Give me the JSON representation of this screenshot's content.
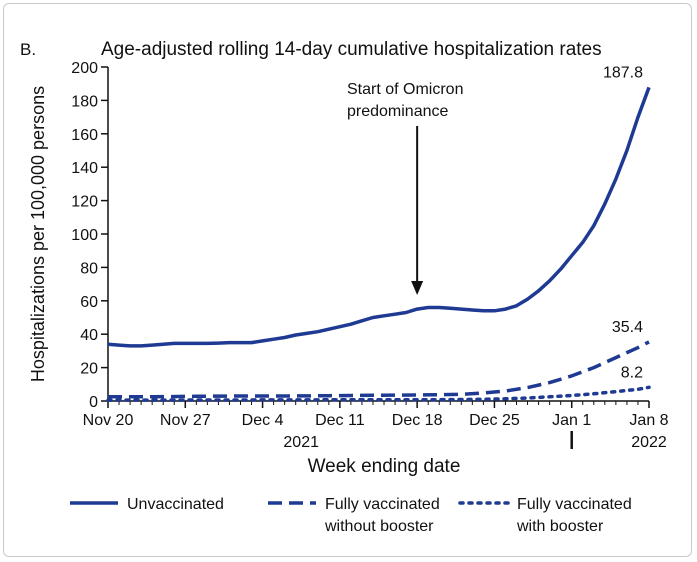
{
  "chart_data": {
    "type": "line",
    "panel_label": "B.",
    "title": "Age-adjusted rolling 14-day cumulative hospitalization rates",
    "xlabel": "Week ending date",
    "ylabel": "Hospitalizations per 100,000 persons",
    "ylim": [
      0,
      200
    ],
    "yticks": [
      0,
      20,
      40,
      60,
      80,
      100,
      120,
      140,
      160,
      180,
      200
    ],
    "xticks": [
      {
        "x": 0,
        "label": "Nov 20"
      },
      {
        "x": 7,
        "label": "Nov 27"
      },
      {
        "x": 14,
        "label": "Dec 4"
      },
      {
        "x": 21,
        "label": "Dec 11"
      },
      {
        "x": 28,
        "label": "Dec 18"
      },
      {
        "x": 35,
        "label": "Dec 25"
      },
      {
        "x": 42,
        "label": "Jan 1"
      },
      {
        "x": 49,
        "label": "Jan 8"
      }
    ],
    "year_labels": [
      {
        "x": 17.5,
        "label": "2021"
      },
      {
        "x": 49,
        "label": "2022"
      }
    ],
    "xlim": [
      0,
      49
    ],
    "grid": false,
    "legend_position": "bottom",
    "annotation": {
      "lines": [
        "Start of Omicron",
        "predominance"
      ],
      "x": 28
    },
    "colors": {
      "series": "#1f3a93",
      "axis": "#111111"
    },
    "series": [
      {
        "name": "Unvaccinated",
        "style": "solid",
        "end_label": "187.8",
        "points": [
          [
            0,
            34
          ],
          [
            1,
            33.5
          ],
          [
            2,
            33
          ],
          [
            3,
            33
          ],
          [
            4,
            33.5
          ],
          [
            5,
            34
          ],
          [
            6,
            34.5
          ],
          [
            7,
            34.5
          ],
          [
            8,
            34.5
          ],
          [
            9,
            34.5
          ],
          [
            10,
            34.7
          ],
          [
            11,
            35
          ],
          [
            12,
            35
          ],
          [
            13,
            35
          ],
          [
            14,
            36
          ],
          [
            15,
            37
          ],
          [
            16,
            38
          ],
          [
            17,
            39.5
          ],
          [
            18,
            40.5
          ],
          [
            19,
            41.5
          ],
          [
            20,
            43
          ],
          [
            21,
            44.5
          ],
          [
            22,
            46
          ],
          [
            23,
            48
          ],
          [
            24,
            50
          ],
          [
            25,
            51
          ],
          [
            26,
            52
          ],
          [
            27,
            53
          ],
          [
            28,
            55
          ],
          [
            29,
            56
          ],
          [
            30,
            56
          ],
          [
            31,
            55.5
          ],
          [
            32,
            55
          ],
          [
            33,
            54.5
          ],
          [
            34,
            54
          ],
          [
            35,
            54
          ],
          [
            36,
            55
          ],
          [
            37,
            57
          ],
          [
            38,
            61
          ],
          [
            39,
            66
          ],
          [
            40,
            72
          ],
          [
            41,
            79
          ],
          [
            42,
            87
          ],
          [
            43,
            95
          ],
          [
            44,
            105
          ],
          [
            45,
            118
          ],
          [
            46,
            133
          ],
          [
            47,
            150
          ],
          [
            48,
            170
          ],
          [
            49,
            187.8
          ]
        ]
      },
      {
        "name": "Fully vaccinated without booster",
        "style": "dashed",
        "end_label": "35.4",
        "points": [
          [
            0,
            2.5
          ],
          [
            4,
            2.5
          ],
          [
            8,
            2.8
          ],
          [
            12,
            3
          ],
          [
            16,
            3
          ],
          [
            20,
            3.2
          ],
          [
            24,
            3.4
          ],
          [
            28,
            3.6
          ],
          [
            30,
            3.8
          ],
          [
            32,
            4
          ],
          [
            34,
            4.8
          ],
          [
            36,
            6
          ],
          [
            38,
            8
          ],
          [
            40,
            11
          ],
          [
            42,
            15
          ],
          [
            44,
            20
          ],
          [
            46,
            26
          ],
          [
            48,
            32
          ],
          [
            49,
            35.4
          ]
        ]
      },
      {
        "name": "Fully vaccinated with booster",
        "style": "dotted",
        "end_label": "8.2",
        "points": [
          [
            0,
            0.5
          ],
          [
            10,
            0.6
          ],
          [
            20,
            0.7
          ],
          [
            30,
            0.8
          ],
          [
            34,
            1
          ],
          [
            36,
            1.3
          ],
          [
            38,
            1.8
          ],
          [
            40,
            2.5
          ],
          [
            42,
            3.3
          ],
          [
            44,
            4.3
          ],
          [
            46,
            5.6
          ],
          [
            48,
            7
          ],
          [
            49,
            8.2
          ]
        ]
      }
    ],
    "legend": [
      {
        "lines": [
          "Unvaccinated"
        ],
        "style": "solid"
      },
      {
        "lines": [
          "Fully vaccinated",
          "without booster"
        ],
        "style": "dashed"
      },
      {
        "lines": [
          "Fully vaccinated",
          "with booster"
        ],
        "style": "dotted"
      }
    ]
  }
}
